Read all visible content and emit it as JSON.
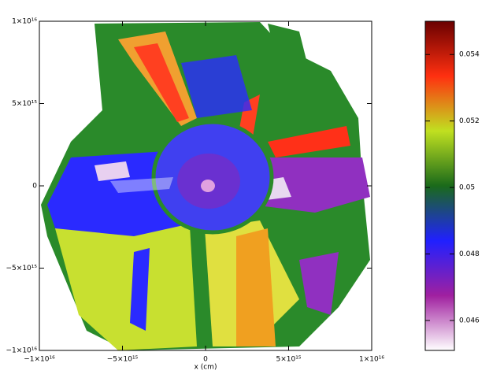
{
  "chart_data": {
    "type": "heatmap",
    "xlabel": "x (cm)",
    "xlim": [
      -1e+16,
      1e+16
    ],
    "ylim": [
      -1e+16,
      1e+16
    ],
    "xticks": [
      {
        "value": -1e+16,
        "label": "−1×10¹⁶"
      },
      {
        "value": -5000000000000000.0,
        "label": "−5×10¹⁵"
      },
      0,
      {
        "value": 5000000000000000.0,
        "label": "5×10¹⁵"
      },
      {
        "value": 1e+16,
        "label": "1×10¹⁶"
      }
    ],
    "yticks": [
      {
        "value": 1e+16,
        "label": "1×10¹⁶"
      },
      {
        "value": 5000000000000000.0,
        "label": "5×10¹⁵"
      },
      0,
      {
        "value": -5000000000000000.0,
        "label": "−5×10¹⁵"
      },
      {
        "value": -1e+16,
        "label": "−1×10¹⁶"
      }
    ],
    "clim": [
      0.0451,
      0.055
    ],
    "cticks": [
      0.046,
      0.048,
      0.05,
      0.052,
      0.054
    ],
    "colormap": [
      "#ffffff",
      "#a020a0",
      "#2020ff",
      "#1a6a1a",
      "#c0e020",
      "#ff3010",
      "#6a0000"
    ]
  }
}
